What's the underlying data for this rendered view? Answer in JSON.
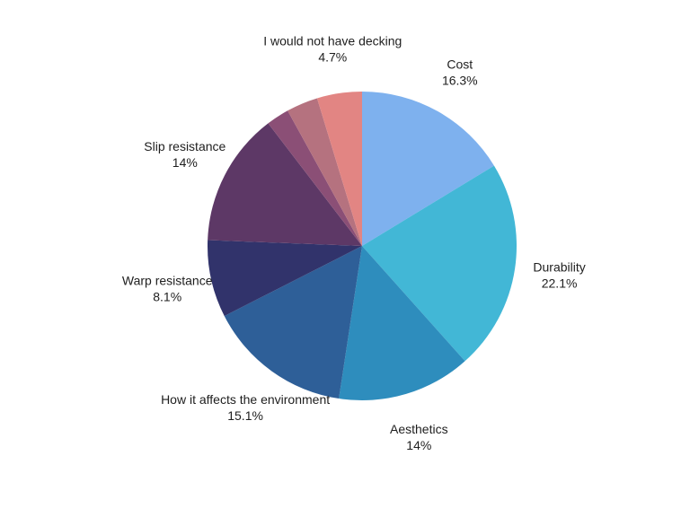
{
  "chart_data": {
    "type": "pie",
    "title": "",
    "slices": [
      {
        "label": "Cost",
        "value": 16.3,
        "value_label": "16.3%",
        "color": "#7eb1ee"
      },
      {
        "label": "Durability",
        "value": 22.1,
        "value_label": "22.1%",
        "color": "#42b7d6"
      },
      {
        "label": "Aesthetics",
        "value": 14,
        "value_label": "14%",
        "color": "#2e8dbd"
      },
      {
        "label": "How it affects the environment",
        "value": 15.1,
        "value_label": "15.1%",
        "color": "#2e5f98"
      },
      {
        "label": "Warp resistance",
        "value": 8.1,
        "value_label": "8.1%",
        "color": "#31336b"
      },
      {
        "label": "Slip resistance",
        "value": 14,
        "value_label": "14%",
        "color": "#5d3866"
      },
      {
        "label": "",
        "value": 2.4,
        "value_label": "",
        "color": "#8b4f76"
      },
      {
        "label": "",
        "value": 3.3,
        "value_label": "",
        "color": "#b5727f"
      },
      {
        "label": "I would not have decking",
        "value": 4.7,
        "value_label": "4.7%",
        "color": "#e28583"
      }
    ],
    "start_angle": "top",
    "direction": "clockwise",
    "legend": "none",
    "labels": "outside"
  }
}
